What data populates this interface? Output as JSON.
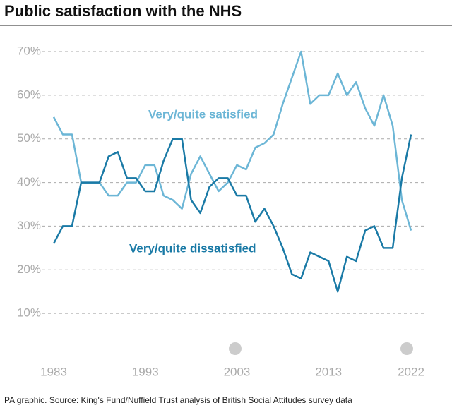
{
  "chart_data": {
    "type": "line",
    "title": "Public satisfaction with the NHS",
    "source": "PA graphic. Source: King's Fund/Nuffield Trust analysis of British Social Attitudes survey data",
    "x": [
      1983,
      1984,
      1985,
      1986,
      1987,
      1988,
      1989,
      1990,
      1991,
      1992,
      1993,
      1994,
      1995,
      1996,
      1997,
      1998,
      1999,
      2000,
      2001,
      2002,
      2003,
      2004,
      2005,
      2006,
      2007,
      2008,
      2009,
      2010,
      2011,
      2012,
      2013,
      2014,
      2015,
      2016,
      2017,
      2018,
      2019,
      2020,
      2021,
      2022
    ],
    "series": [
      {
        "name": "Very/quite satisfied",
        "color": "#6cb6d6",
        "values": [
          55,
          51,
          51,
          40,
          40,
          40,
          37,
          37,
          40,
          40,
          44,
          44,
          37,
          36,
          34,
          42,
          46,
          42,
          38,
          40,
          44,
          43,
          48,
          49,
          51,
          58,
          64,
          70,
          58,
          60,
          60,
          65,
          60,
          63,
          57,
          53,
          60,
          53,
          36,
          29
        ]
      },
      {
        "name": "Very/quite dissatisfied",
        "color": "#1a7aa6",
        "values": [
          26,
          30,
          30,
          40,
          40,
          40,
          46,
          47,
          41,
          41,
          38,
          38,
          45,
          50,
          50,
          36,
          33,
          39,
          41,
          41,
          37,
          37,
          31,
          34,
          30,
          25,
          19,
          18,
          24,
          23,
          22,
          15,
          23,
          22,
          29,
          30,
          25,
          25,
          41,
          51
        ]
      }
    ],
    "xlim": [
      1983,
      2022
    ],
    "xticks": [
      1983,
      1993,
      2003,
      2013,
      2022
    ],
    "ylim": [
      0,
      70
    ],
    "yticks": [
      {
        "value": 10,
        "label": "10%"
      },
      {
        "value": 20,
        "label": "20%"
      },
      {
        "value": 30,
        "label": "30%"
      },
      {
        "value": 40,
        "label": "40%"
      },
      {
        "value": 50,
        "label": "50%"
      },
      {
        "value": 60,
        "label": "60%"
      },
      {
        "value": 70,
        "label": "70%"
      }
    ],
    "grid": true
  }
}
